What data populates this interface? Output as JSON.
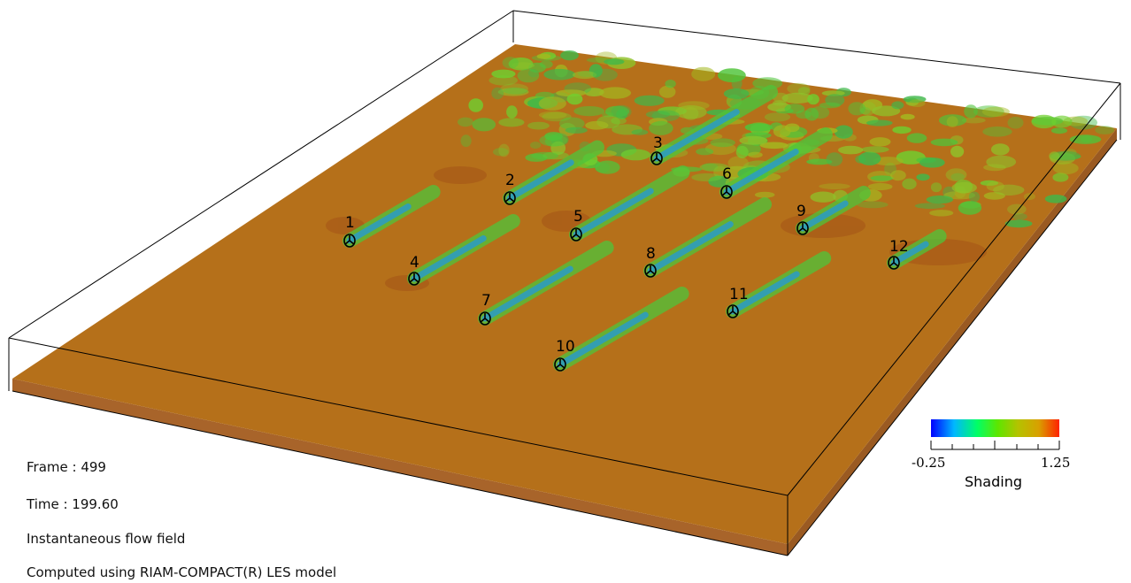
{
  "info": {
    "frame": "Frame : 499",
    "time": "Time : 199.60",
    "description": "Instantaneous flow field",
    "credit": "Computed using RIAM-COMPACT(R) LES model"
  },
  "turbines": [
    {
      "label": "1"
    },
    {
      "label": "2"
    },
    {
      "label": "3"
    },
    {
      "label": "4"
    },
    {
      "label": "5"
    },
    {
      "label": "6"
    },
    {
      "label": "7"
    },
    {
      "label": "8"
    },
    {
      "label": "9"
    },
    {
      "label": "10"
    },
    {
      "label": "11"
    },
    {
      "label": "12"
    }
  ],
  "colorbar": {
    "title": "Shading",
    "min_label": "-0.25",
    "max_label": "1.25",
    "min": -0.25,
    "max": 1.25,
    "colors": [
      "#0000ff",
      "#00b7ff",
      "#00ff66",
      "#5ee600",
      "#b5c200",
      "#d9a000",
      "#ff2200"
    ]
  },
  "colors": {
    "ground": "#b5701a",
    "ground_dark": "#a85d15",
    "wake": "#2ecc40",
    "wake_core": "#1d8fd6",
    "box_edge": "#000000"
  }
}
